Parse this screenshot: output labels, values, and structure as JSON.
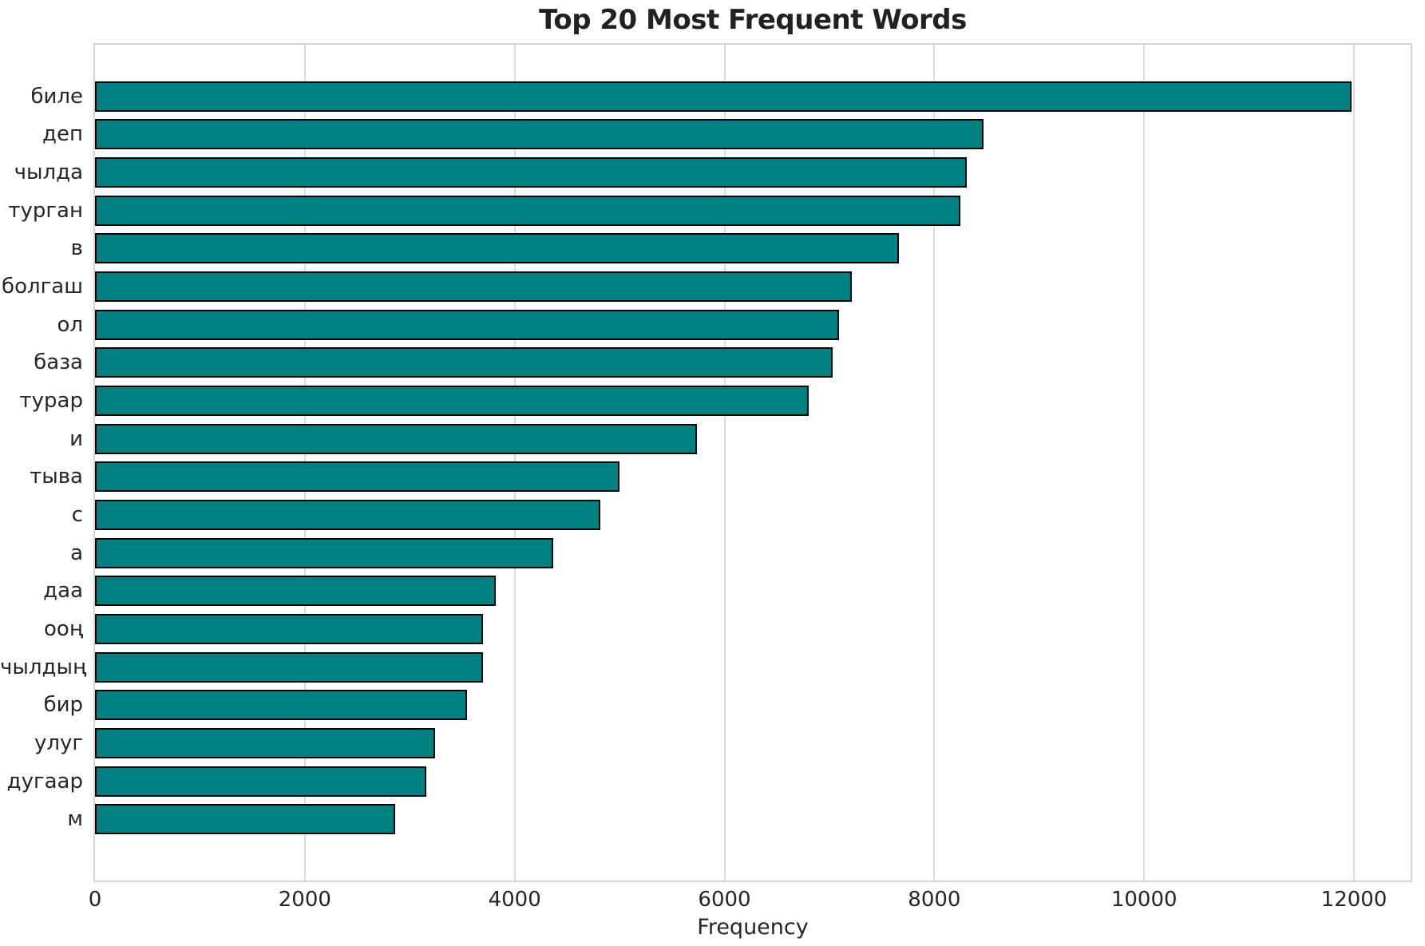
{
  "chart_data": {
    "type": "bar",
    "orientation": "horizontal",
    "title": "Top 20 Most Frequent Words",
    "xlabel": "Frequency",
    "ylabel": "",
    "categories": [
      "биле",
      "деп",
      "чылда",
      "турган",
      "в",
      "болгаш",
      "ол",
      "база",
      "турар",
      "и",
      "тыва",
      "с",
      "а",
      "даа",
      "ооң",
      "чылдың",
      "бир",
      "улуг",
      "дугаар",
      "м"
    ],
    "values": [
      11980,
      8470,
      8310,
      8250,
      7660,
      7210,
      7090,
      7030,
      6800,
      5740,
      5000,
      4820,
      4370,
      3820,
      3700,
      3695,
      3545,
      3240,
      3160,
      2860
    ],
    "xlim": [
      0,
      12575
    ],
    "xticks": [
      0,
      2000,
      4000,
      6000,
      8000,
      10000,
      12000
    ],
    "grid": true,
    "grid_axis": "x",
    "legend": false,
    "styles": {
      "bar_fill": "#008080",
      "bar_edge": "#000000",
      "grid_color": "#dcdcdc",
      "spine_color": "#d5d5d5",
      "tick_text_color": "#262626",
      "title_color": "#212121",
      "background": "#ffffff"
    }
  }
}
